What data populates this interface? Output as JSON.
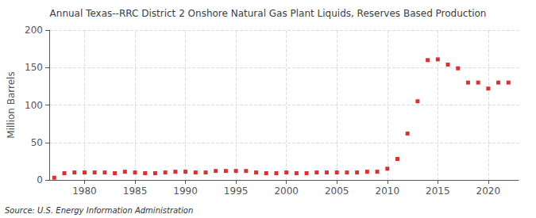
{
  "chart_data": {
    "type": "scatter",
    "title": "Annual Texas--RRC District 2 Onshore Natural Gas Plant Liquids, Reserves Based Production",
    "ylabel": "Million Barrels",
    "source": "Source: U.S. Energy Information Administration",
    "x": [
      1977,
      1978,
      1979,
      1980,
      1981,
      1982,
      1983,
      1984,
      1985,
      1986,
      1987,
      1988,
      1989,
      1990,
      1991,
      1992,
      1993,
      1994,
      1995,
      1996,
      1997,
      1998,
      1999,
      2000,
      2001,
      2002,
      2003,
      2004,
      2005,
      2006,
      2007,
      2008,
      2009,
      2010,
      2011,
      2012,
      2013,
      2014,
      2015,
      2016,
      2017,
      2018,
      2019,
      2020,
      2021,
      2022
    ],
    "values": [
      3,
      9,
      10,
      10,
      10,
      10,
      9,
      11,
      10,
      9,
      9,
      10,
      11,
      11,
      10,
      10,
      12,
      12,
      12,
      12,
      10,
      9,
      9,
      10,
      9,
      9,
      10,
      10,
      10,
      10,
      10,
      11,
      11,
      15,
      28,
      62,
      105,
      160,
      161,
      154,
      149,
      130,
      130,
      122,
      130,
      130
    ],
    "color": "#cc0000",
    "marker": "square",
    "xlim": [
      1976.5,
      2023
    ],
    "xticks": [
      1980,
      1985,
      1990,
      1995,
      2000,
      2005,
      2010,
      2015,
      2020
    ],
    "ylim": [
      0,
      200
    ],
    "yticks": [
      0,
      50,
      100,
      150,
      200
    ],
    "grid": true
  }
}
